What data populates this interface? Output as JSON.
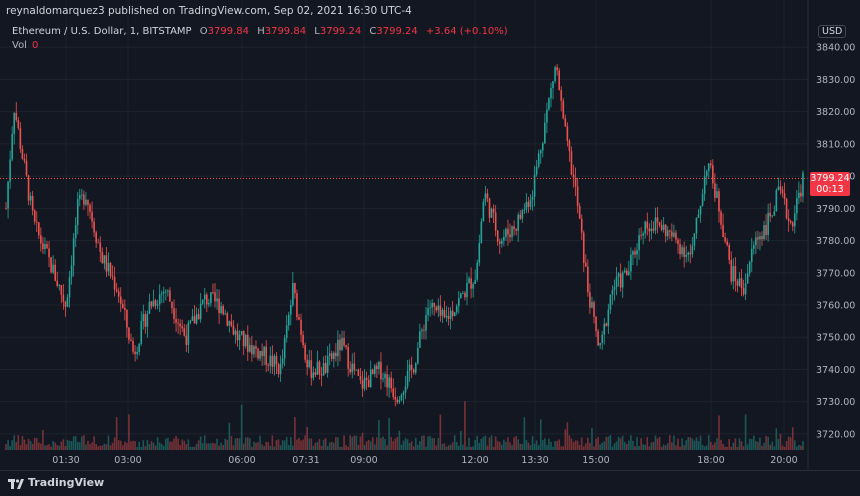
{
  "header": {
    "published": "reynaldomarquez3 published on TradingView.com, Sep 02, 2021 16:30 UTC-4"
  },
  "legend": {
    "symbol": "Ethereum / U.S. Dollar, 1, BITSTAMP",
    "o_label": "O",
    "o_value": "3799.84",
    "h_label": "H",
    "h_value": "3799.84",
    "l_label": "L",
    "l_value": "3799.24",
    "c_label": "C",
    "c_value": "3799.24",
    "change": "+3.64 (+0.10%)",
    "vol_label": "Vol",
    "vol_value": "0"
  },
  "axis": {
    "currency": "USD"
  },
  "last_price": {
    "price": "3799.24",
    "countdown": "00:13"
  },
  "footer": {
    "brand": "TradingView"
  },
  "colors": {
    "up": "#26a69a",
    "down": "#ef5350",
    "background": "#131722",
    "grid": "#1e222d"
  },
  "chart_data": {
    "type": "candlestick",
    "y_ticks": [
      3720,
      3730,
      3740,
      3750,
      3760,
      3770,
      3780,
      3790,
      3800,
      3810,
      3820,
      3830,
      3840
    ],
    "ylim": [
      3715,
      3850
    ],
    "x_ticks": [
      "01:30",
      "03:00",
      "06:00",
      "07:31",
      "09:00",
      "12:00",
      "13:30",
      "15:00",
      "18:00",
      "20:00"
    ],
    "price_path": [
      {
        "x": 0.0,
        "y": 3790
      },
      {
        "x": 0.01,
        "y": 3822
      },
      {
        "x": 0.018,
        "y": 3810
      },
      {
        "x": 0.035,
        "y": 3785
      },
      {
        "x": 0.06,
        "y": 3770
      },
      {
        "x": 0.075,
        "y": 3760
      },
      {
        "x": 0.09,
        "y": 3790
      },
      {
        "x": 0.1,
        "y": 3795
      },
      {
        "x": 0.12,
        "y": 3775
      },
      {
        "x": 0.14,
        "y": 3765
      },
      {
        "x": 0.16,
        "y": 3745
      },
      {
        "x": 0.18,
        "y": 3760
      },
      {
        "x": 0.2,
        "y": 3765
      },
      {
        "x": 0.225,
        "y": 3750
      },
      {
        "x": 0.25,
        "y": 3762
      },
      {
        "x": 0.27,
        "y": 3760
      },
      {
        "x": 0.29,
        "y": 3750
      },
      {
        "x": 0.32,
        "y": 3745
      },
      {
        "x": 0.345,
        "y": 3740
      },
      {
        "x": 0.36,
        "y": 3765
      },
      {
        "x": 0.38,
        "y": 3740
      },
      {
        "x": 0.4,
        "y": 3740
      },
      {
        "x": 0.42,
        "y": 3748
      },
      {
        "x": 0.445,
        "y": 3735
      },
      {
        "x": 0.47,
        "y": 3740
      },
      {
        "x": 0.49,
        "y": 3732
      },
      {
        "x": 0.51,
        "y": 3740
      },
      {
        "x": 0.53,
        "y": 3760
      },
      {
        "x": 0.55,
        "y": 3755
      },
      {
        "x": 0.57,
        "y": 3762
      },
      {
        "x": 0.59,
        "y": 3770
      },
      {
        "x": 0.6,
        "y": 3795
      },
      {
        "x": 0.62,
        "y": 3780
      },
      {
        "x": 0.64,
        "y": 3785
      },
      {
        "x": 0.66,
        "y": 3795
      },
      {
        "x": 0.69,
        "y": 3835
      },
      {
        "x": 0.7,
        "y": 3815
      },
      {
        "x": 0.715,
        "y": 3795
      },
      {
        "x": 0.73,
        "y": 3765
      },
      {
        "x": 0.745,
        "y": 3745
      },
      {
        "x": 0.76,
        "y": 3765
      },
      {
        "x": 0.78,
        "y": 3770
      },
      {
        "x": 0.8,
        "y": 3785
      },
      {
        "x": 0.82,
        "y": 3785
      },
      {
        "x": 0.84,
        "y": 3780
      },
      {
        "x": 0.86,
        "y": 3775
      },
      {
        "x": 0.88,
        "y": 3805
      },
      {
        "x": 0.895,
        "y": 3790
      },
      {
        "x": 0.91,
        "y": 3770
      },
      {
        "x": 0.925,
        "y": 3765
      },
      {
        "x": 0.94,
        "y": 3780
      },
      {
        "x": 0.955,
        "y": 3785
      },
      {
        "x": 0.97,
        "y": 3795
      },
      {
        "x": 0.985,
        "y": 3785
      },
      {
        "x": 1.0,
        "y": 3799
      }
    ]
  }
}
